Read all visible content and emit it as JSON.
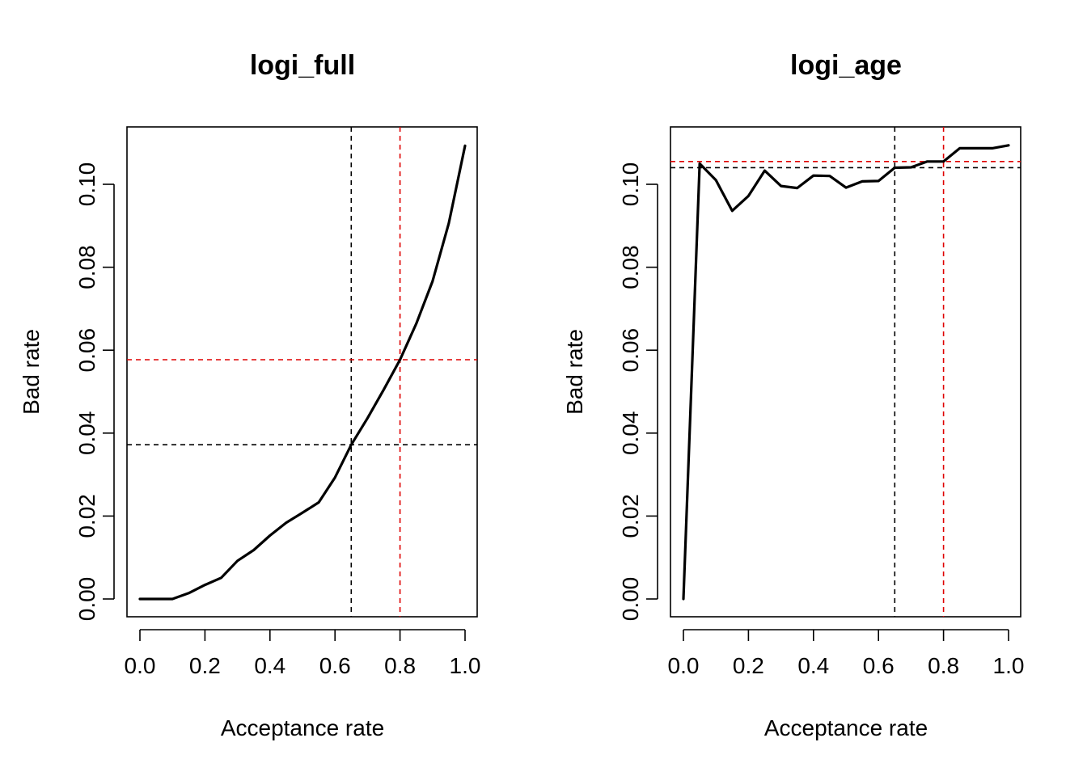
{
  "colors": {
    "line": "#000000",
    "reference_black": "#000000",
    "reference_red": "#DF0000",
    "background": "#ffffff"
  },
  "chart_data": [
    {
      "type": "line",
      "title": "logi_full",
      "xlabel": "Acceptance rate",
      "ylabel": "Bad rate",
      "xlim": [
        0,
        1
      ],
      "ylim": [
        0,
        0.11
      ],
      "x_ticks": [
        "0.0",
        "0.2",
        "0.4",
        "0.6",
        "0.8",
        "1.0"
      ],
      "y_ticks": [
        "0.00",
        "0.02",
        "0.04",
        "0.06",
        "0.08",
        "0.10"
      ],
      "grid": false,
      "x": [
        0.0,
        0.05,
        0.1,
        0.15,
        0.2,
        0.25,
        0.3,
        0.35,
        0.4,
        0.45,
        0.5,
        0.55,
        0.6,
        0.65,
        0.7,
        0.75,
        0.8,
        0.85,
        0.9,
        0.95,
        1.0
      ],
      "y": [
        0.0,
        0.0,
        0.0,
        0.0014,
        0.0034,
        0.0051,
        0.0092,
        0.0118,
        0.0153,
        0.0184,
        0.0208,
        0.0233,
        0.0293,
        0.0372,
        0.0436,
        0.0505,
        0.0577,
        0.0664,
        0.0766,
        0.0906,
        0.1093
      ],
      "reference_lines": [
        {
          "orientation": "vertical",
          "value": 0.65,
          "color": "black"
        },
        {
          "orientation": "vertical",
          "value": 0.8,
          "color": "red"
        },
        {
          "orientation": "horizontal",
          "value": 0.0372,
          "color": "black"
        },
        {
          "orientation": "horizontal",
          "value": 0.0577,
          "color": "red"
        }
      ]
    },
    {
      "type": "line",
      "title": "logi_age",
      "xlabel": "Acceptance rate",
      "ylabel": "Bad rate",
      "xlim": [
        0,
        1
      ],
      "ylim": [
        0,
        0.11
      ],
      "x_ticks": [
        "0.0",
        "0.2",
        "0.4",
        "0.6",
        "0.8",
        "1.0"
      ],
      "y_ticks": [
        "0.00",
        "0.02",
        "0.04",
        "0.06",
        "0.08",
        "0.10"
      ],
      "grid": false,
      "x": [
        0.0,
        0.05,
        0.1,
        0.15,
        0.2,
        0.25,
        0.3,
        0.35,
        0.4,
        0.45,
        0.5,
        0.55,
        0.6,
        0.65,
        0.7,
        0.75,
        0.8,
        0.85,
        0.9,
        0.95,
        1.0
      ],
      "y": [
        0.0,
        0.105,
        0.101,
        0.0936,
        0.0972,
        0.1033,
        0.0996,
        0.0991,
        0.1021,
        0.102,
        0.0992,
        0.1007,
        0.1008,
        0.104,
        0.1041,
        0.1055,
        0.1055,
        0.1087,
        0.1087,
        0.1087,
        0.1094
      ],
      "reference_lines": [
        {
          "orientation": "vertical",
          "value": 0.65,
          "color": "black"
        },
        {
          "orientation": "vertical",
          "value": 0.8,
          "color": "red"
        },
        {
          "orientation": "horizontal",
          "value": 0.104,
          "color": "black"
        },
        {
          "orientation": "horizontal",
          "value": 0.1055,
          "color": "red"
        }
      ]
    }
  ]
}
